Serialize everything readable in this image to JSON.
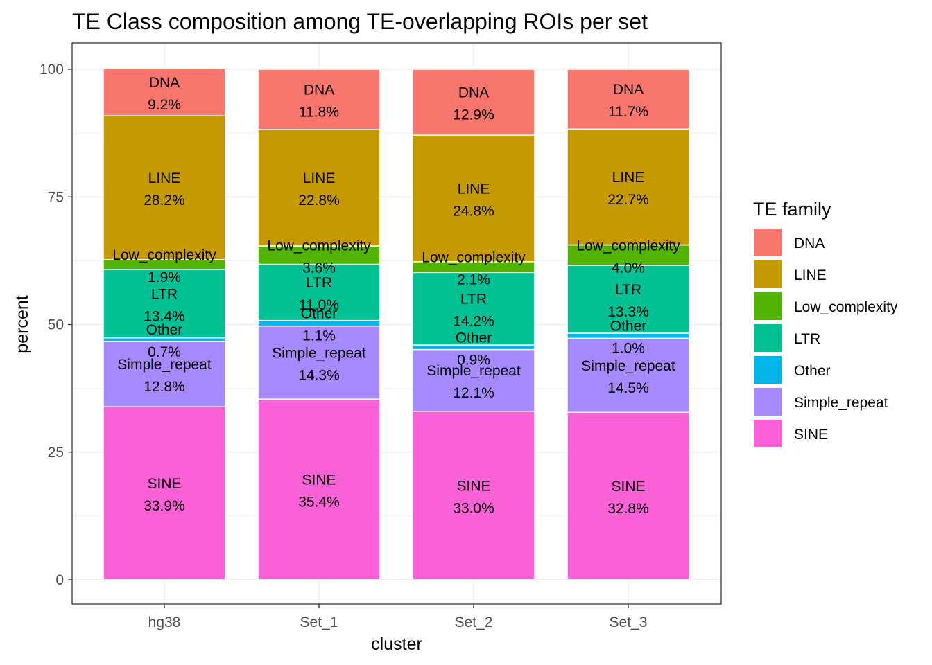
{
  "chart_data": {
    "type": "bar",
    "stacked": true,
    "title": "TE Class composition among TE-overlapping ROIs per set",
    "xlabel": "cluster",
    "ylabel": "percent",
    "ylim": [
      0,
      100
    ],
    "yticks": [
      0,
      25,
      50,
      75,
      100
    ],
    "grid": true,
    "legend": {
      "title": "TE family",
      "position": "right"
    },
    "categories": [
      "hg38",
      "Set_1",
      "Set_2",
      "Set_3"
    ],
    "series": [
      {
        "name": "DNA",
        "color": "#F8766D",
        "values": [
          9.2,
          11.8,
          12.9,
          11.7
        ],
        "labels": [
          "9.2%",
          "11.8%",
          "12.9%",
          "11.7%"
        ]
      },
      {
        "name": "LINE",
        "color": "#C49A00",
        "values": [
          28.2,
          22.8,
          24.8,
          22.7
        ],
        "labels": [
          "28.2%",
          "22.8%",
          "24.8%",
          "22.7%"
        ]
      },
      {
        "name": "Low_complexity",
        "color": "#53B400",
        "values": [
          1.9,
          3.6,
          2.1,
          4.0
        ],
        "labels": [
          "1.9%",
          "3.6%",
          "2.1%",
          "4.0%"
        ]
      },
      {
        "name": "LTR",
        "color": "#00C094",
        "values": [
          13.4,
          11.0,
          14.2,
          13.3
        ],
        "labels": [
          "13.4%",
          "11.0%",
          "14.2%",
          "13.3%"
        ]
      },
      {
        "name": "Other",
        "color": "#00B6EB",
        "values": [
          0.7,
          1.1,
          0.9,
          1.0
        ],
        "labels": [
          "0.7%",
          "1.1%",
          "0.9%",
          "1.0%"
        ]
      },
      {
        "name": "Simple_repeat",
        "color": "#A58AFF",
        "values": [
          12.8,
          14.3,
          12.1,
          14.5
        ],
        "labels": [
          "12.8%",
          "14.3%",
          "12.1%",
          "14.5%"
        ]
      },
      {
        "name": "SINE",
        "color": "#FB61D7",
        "values": [
          33.9,
          35.4,
          33.0,
          32.8
        ],
        "labels": [
          "33.9%",
          "35.4%",
          "33.0%",
          "32.8%"
        ]
      }
    ]
  }
}
